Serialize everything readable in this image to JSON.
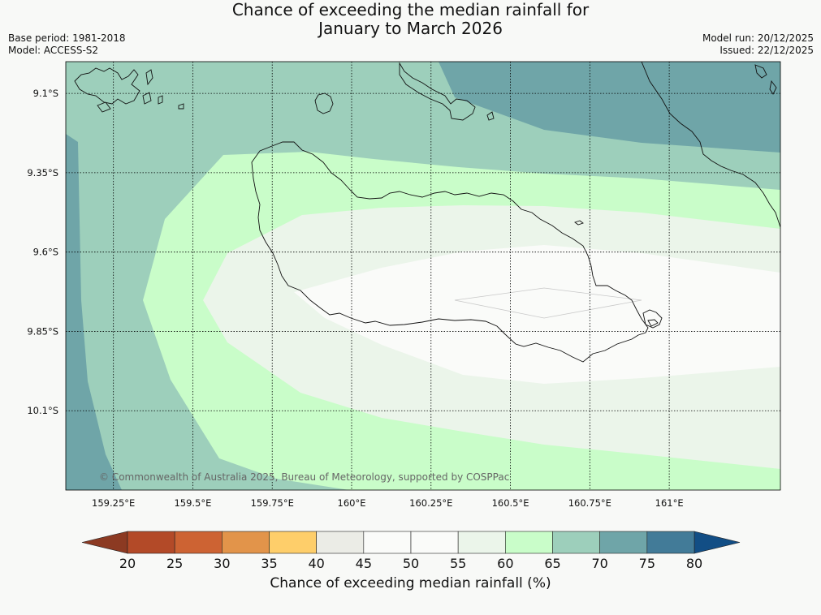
{
  "header": {
    "title_line1": "Chance of exceeding the median rainfall for",
    "title_line2": "January to March 2026",
    "base_period": "Base period: 1981-2018",
    "model": "Model: ACCESS-S2",
    "model_run": "Model run: 20/12/2025",
    "issued": "Issued: 22/12/2025"
  },
  "map": {
    "extent": {
      "lon_min": 159.1,
      "lon_max": 161.35,
      "lat_min": -10.35,
      "lat_max": -9.0
    },
    "lat_ticks": [
      {
        "value": -9.1,
        "label": "9.1°S"
      },
      {
        "value": -9.35,
        "label": "9.35°S"
      },
      {
        "value": -9.6,
        "label": "9.6°S"
      },
      {
        "value": -9.85,
        "label": "9.85°S"
      },
      {
        "value": -10.1,
        "label": "10.1°S"
      }
    ],
    "lon_ticks": [
      {
        "value": 159.25,
        "label": "159.25°E"
      },
      {
        "value": 159.5,
        "label": "159.5°E"
      },
      {
        "value": 159.75,
        "label": "159.75°E"
      },
      {
        "value": 160.0,
        "label": "160°E"
      },
      {
        "value": 160.25,
        "label": "160.25°E"
      },
      {
        "value": 160.5,
        "label": "160.5°E"
      },
      {
        "value": 160.75,
        "label": "160.75°E"
      },
      {
        "value": 161.0,
        "label": "161°E"
      }
    ],
    "gridlines": "dotted",
    "copyright": "© Commonwealth of Australia 2025, Bureau of Meteorology, supported by COSPPac"
  },
  "colorbar": {
    "label": "Chance of exceeding median rainfall (%)",
    "ticks": [
      "20",
      "25",
      "30",
      "35",
      "40",
      "45",
      "50",
      "55",
      "60",
      "65",
      "70",
      "75",
      "80"
    ],
    "under_color": "#8c3a22",
    "over_color": "#124e85",
    "colors": [
      "#b34a28",
      "#cd6333",
      "#e2944a",
      "#fece6a",
      "#ebece6",
      "#fafbf9",
      "#fafbf9",
      "#ebf5ea",
      "#c9fdc9",
      "#9dcfbb",
      "#6fa5a8",
      "#427b98"
    ]
  }
}
